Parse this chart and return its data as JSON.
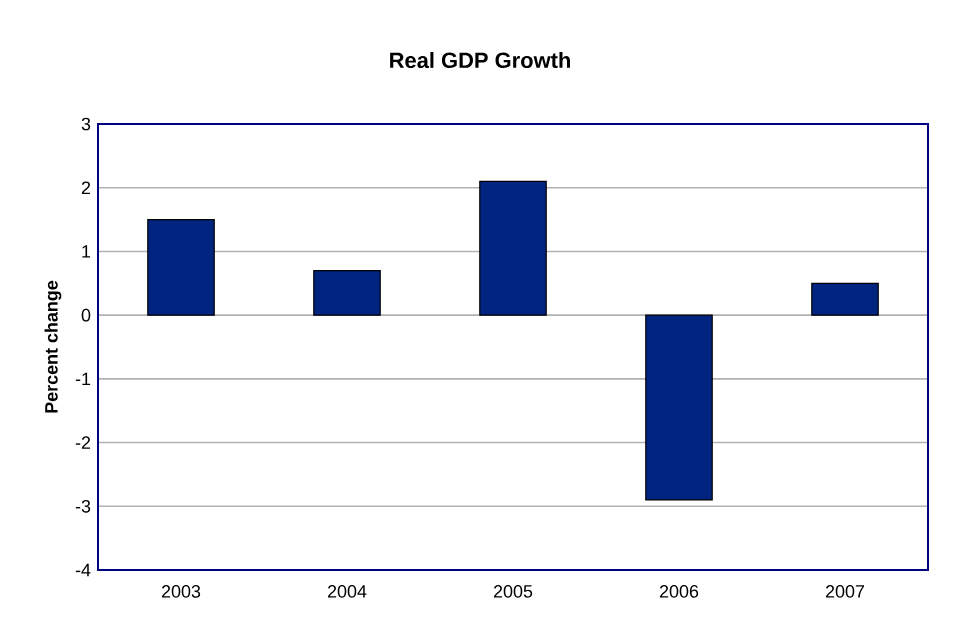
{
  "chart_data": {
    "type": "bar",
    "title": "Real GDP Growth",
    "ylabel": "Percent change",
    "categories": [
      "2003",
      "2004",
      "2005",
      "2006",
      "2007"
    ],
    "values": [
      1.5,
      0.7,
      2.1,
      -2.9,
      0.5
    ],
    "color": "#002480",
    "ylim": [
      -4,
      3
    ],
    "yticks": [
      -4,
      -3,
      -2,
      -1,
      0,
      1,
      2,
      3
    ],
    "grid": "y"
  }
}
